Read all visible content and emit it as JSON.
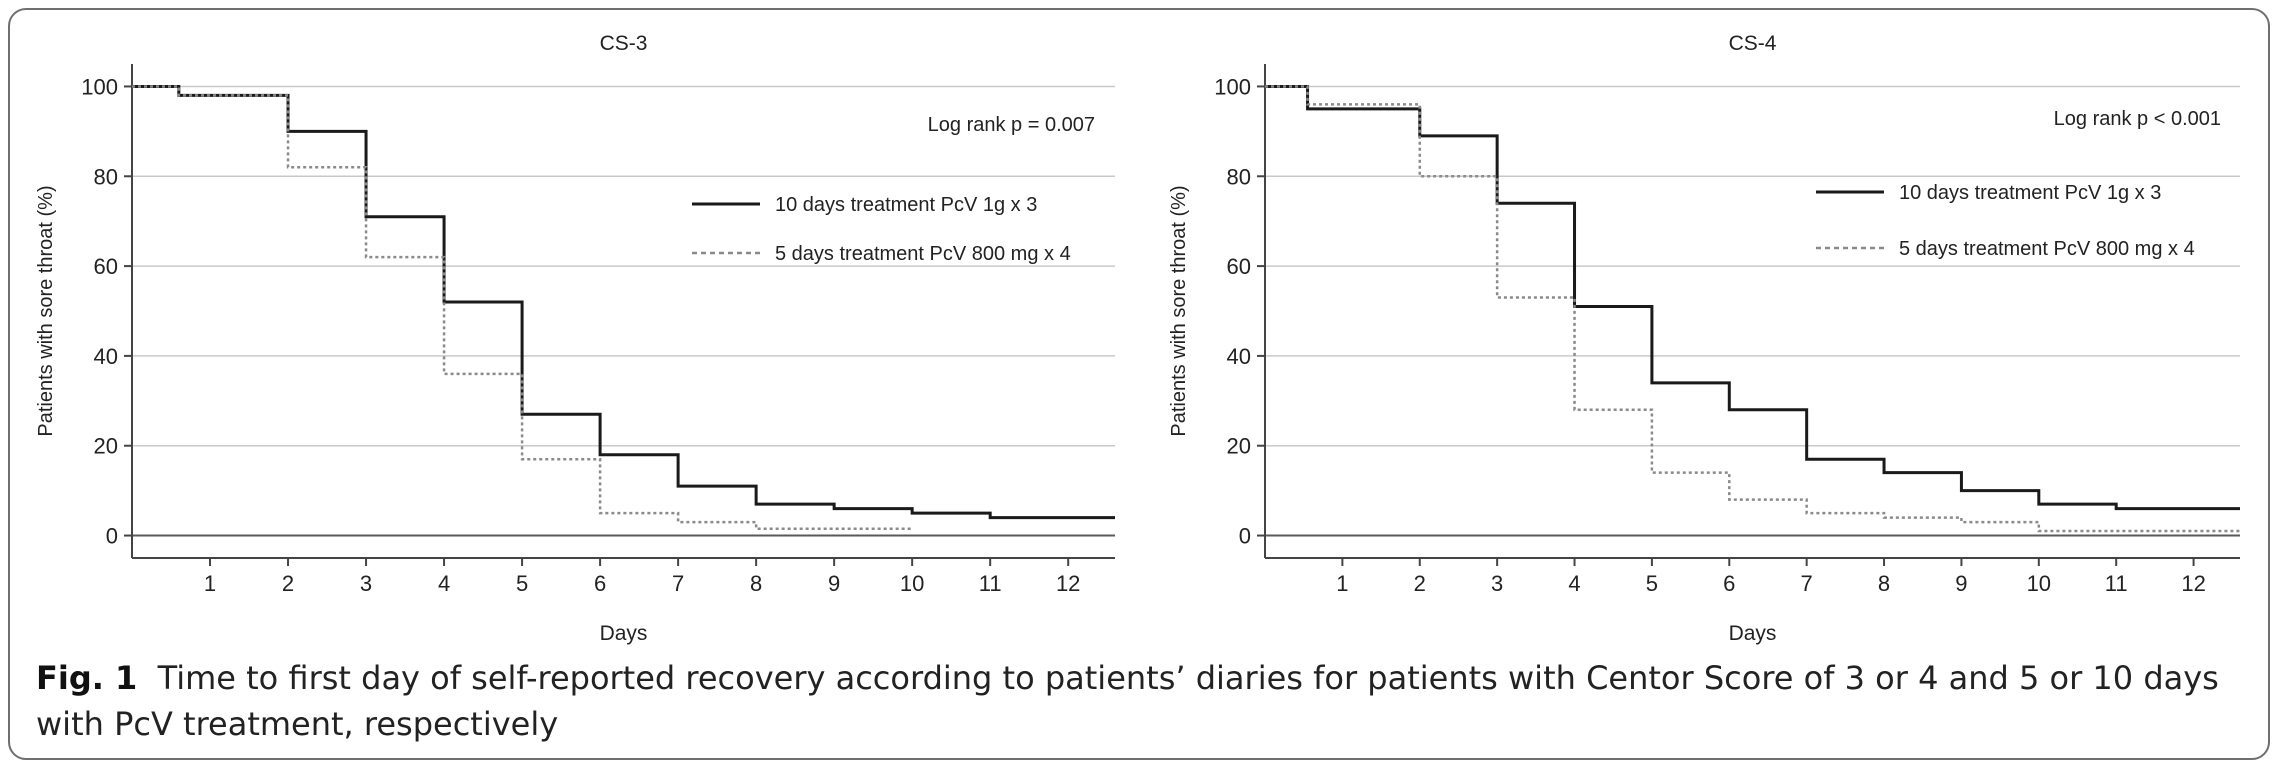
{
  "figure": {
    "caption_label": "Fig. 1",
    "caption_text": "Time to first day of self-reported recovery according to patients’ diaries for patients with Centor Score of 3 or 4 and 5 or 10 days with PcV treatment, respectively"
  },
  "chart_data": [
    {
      "type": "line",
      "step": true,
      "title": "CS-3",
      "xlabel": "Days",
      "ylabel": "Patients with sore throat (%)",
      "xlim": [
        0,
        12.6
      ],
      "ylim": [
        -5,
        105
      ],
      "xticks": [
        1,
        2,
        3,
        4,
        5,
        6,
        7,
        8,
        9,
        10,
        11,
        12
      ],
      "yticks": [
        0,
        20,
        40,
        60,
        80,
        100
      ],
      "grid": "horizontal",
      "annotation": "Log rank p = 0.007",
      "legend_position": "right",
      "series": [
        {
          "name": "10 days treatment PcV 1g x 3",
          "style": "solid",
          "color": "#1a1a1a",
          "x": [
            0,
            0.6,
            2,
            3,
            4,
            5,
            6,
            7,
            8,
            9,
            10,
            11,
            12.6
          ],
          "y": [
            100,
            98,
            90,
            71,
            52,
            27,
            18,
            11,
            7,
            6,
            5,
            4,
            4
          ]
        },
        {
          "name": "5 days treatment PcV 800 mg x 4",
          "style": "dotted",
          "color": "#8a8a8a",
          "x": [
            0,
            0.6,
            2,
            3,
            4,
            5,
            6,
            7,
            8,
            10
          ],
          "y": [
            100,
            98,
            82,
            62,
            36,
            17,
            5,
            3,
            1.5,
            1.5
          ]
        }
      ]
    },
    {
      "type": "line",
      "step": true,
      "title": "CS-4",
      "xlabel": "Days",
      "ylabel": "Patients with sore throat (%)",
      "xlim": [
        0,
        12.6
      ],
      "ylim": [
        -5,
        105
      ],
      "xticks": [
        1,
        2,
        3,
        4,
        5,
        6,
        7,
        8,
        9,
        10,
        11,
        12
      ],
      "yticks": [
        0,
        20,
        40,
        60,
        80,
        100
      ],
      "grid": "horizontal",
      "annotation": "Log rank p < 0.001",
      "legend_position": "right",
      "series": [
        {
          "name": "10 days treatment PcV 1g x 3",
          "style": "solid",
          "color": "#1a1a1a",
          "x": [
            0,
            0.55,
            2,
            3,
            4,
            5,
            6,
            7,
            8,
            9,
            10,
            11,
            12.6
          ],
          "y": [
            100,
            95,
            89,
            74,
            51,
            34,
            28,
            17,
            14,
            10,
            7,
            6,
            6
          ]
        },
        {
          "name": "5 days treatment PcV 800 mg x 4",
          "style": "dotted",
          "color": "#8a8a8a",
          "x": [
            0,
            0.55,
            2,
            3,
            4,
            5,
            6,
            7,
            8,
            9,
            10,
            12.6
          ],
          "y": [
            100,
            96,
            80,
            53,
            28,
            14,
            8,
            5,
            4,
            3,
            1,
            1
          ]
        }
      ]
    }
  ]
}
